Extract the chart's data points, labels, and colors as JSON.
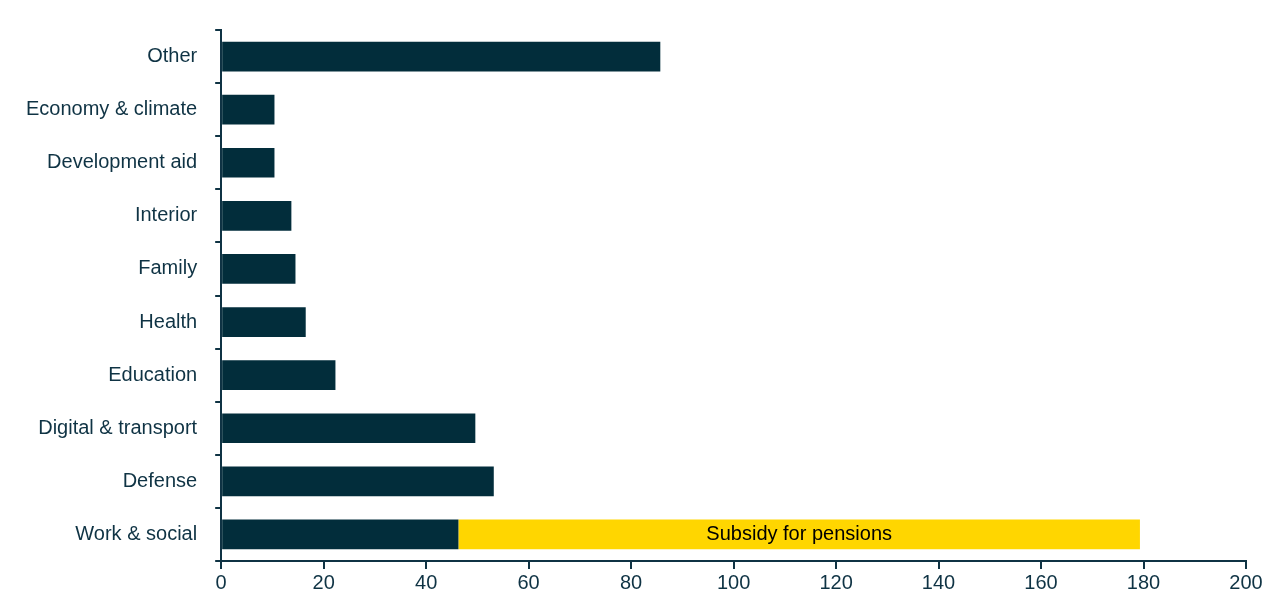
{
  "chart_data": {
    "type": "bar",
    "orientation": "horizontal",
    "stacked": true,
    "categories": [
      "Other",
      "Economy & climate",
      "Development aid",
      "Interior",
      "Family",
      "Health",
      "Education",
      "Digital & transport",
      "Defense",
      "Work & social"
    ],
    "series": [
      {
        "color": "#022d3b",
        "values": [
          85.7,
          10.4,
          10.4,
          13.7,
          14.5,
          16.5,
          22.3,
          49.6,
          53.2,
          46.3
        ]
      },
      {
        "name": "Subsidy for pensions",
        "color": "#ffd600",
        "values": [
          null,
          null,
          null,
          null,
          null,
          null,
          null,
          null,
          null,
          133
        ]
      }
    ],
    "xlim": [
      0,
      200
    ],
    "xticks": [
      0,
      20,
      40,
      60,
      80,
      100,
      120,
      140,
      160,
      180,
      200
    ],
    "grid": false,
    "legend": false
  }
}
